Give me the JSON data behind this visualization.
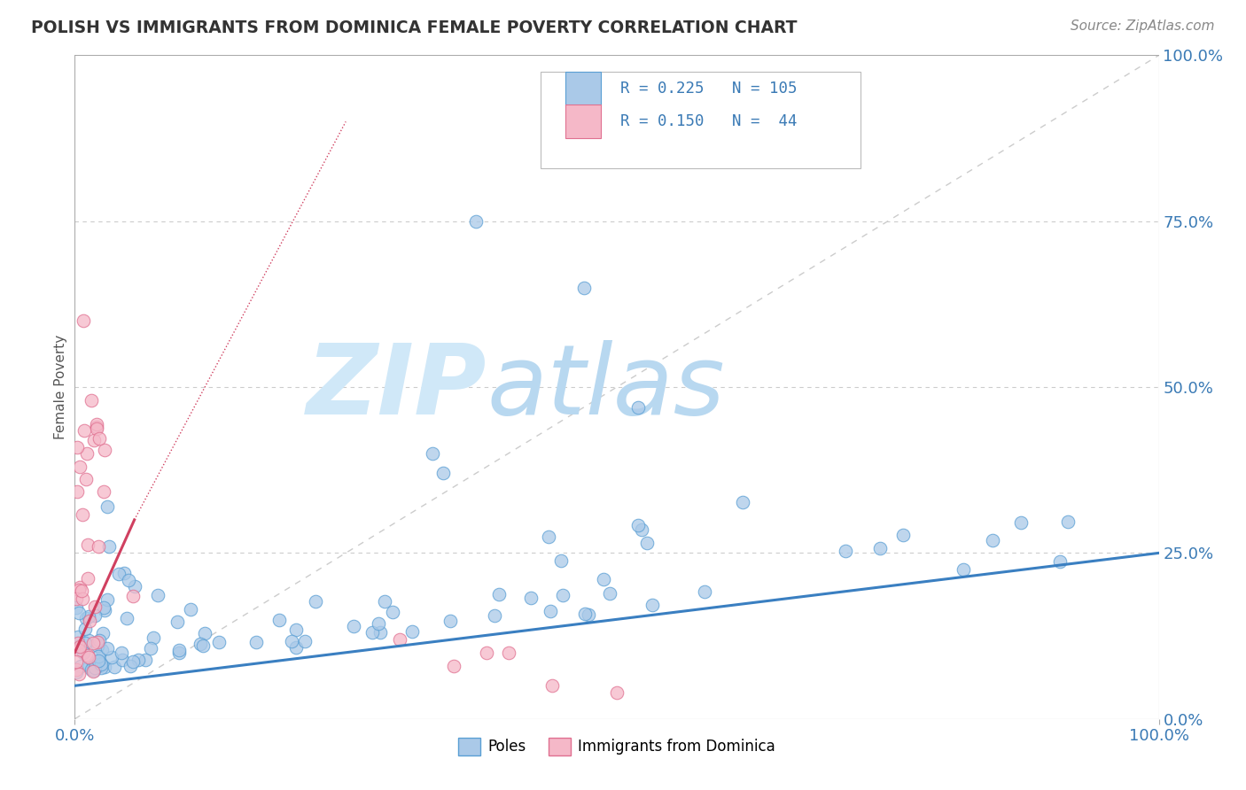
{
  "title": "POLISH VS IMMIGRANTS FROM DOMINICA FEMALE POVERTY CORRELATION CHART",
  "source": "Source: ZipAtlas.com",
  "ylabel": "Female Poverty",
  "watermark_zip": "ZIP",
  "watermark_atlas": "atlas",
  "poles_R": 0.225,
  "poles_N": 105,
  "dominica_R": 0.15,
  "dominica_N": 44,
  "poles_color": "#aac9e8",
  "poles_edge_color": "#5a9fd4",
  "poles_line_color": "#3a7fc1",
  "dominica_color": "#f5b8c8",
  "dominica_edge_color": "#e07090",
  "dominica_line_color": "#d04060",
  "diagonal_color": "#cccccc",
  "grid_color": "#cccccc",
  "legend_color": "#3a7ab5",
  "title_color": "#333333",
  "source_color": "#888888",
  "background_color": "#ffffff",
  "watermark_color": "#d0e8f8",
  "tick_color": "#3a7ab5"
}
